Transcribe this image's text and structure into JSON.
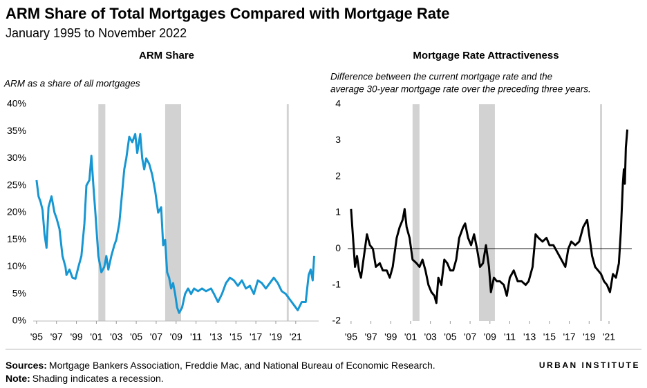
{
  "title": "ARM Share of Total Mortgages Compared with Mortgage Rate",
  "subtitle": "January 1995 to November 2022",
  "chart_data": [
    {
      "type": "line",
      "title": "ARM Share",
      "title_color": "#1696d2",
      "y_label": [
        "ARM as a share of all mortgages"
      ],
      "color": "#1696d2",
      "x": [
        1995.0,
        1995.2,
        1995.4,
        1995.6,
        1995.8,
        1996.0,
        1996.2,
        1996.5,
        1996.8,
        1997.0,
        1997.3,
        1997.6,
        1997.9,
        1998.0,
        1998.3,
        1998.6,
        1998.9,
        1999.2,
        1999.5,
        1999.8,
        2000.0,
        2000.3,
        2000.5,
        2000.7,
        2000.9,
        2001.2,
        2001.5,
        2001.8,
        2002.0,
        2002.2,
        2002.5,
        2002.8,
        2003.0,
        2003.3,
        2003.5,
        2003.8,
        2004.0,
        2004.3,
        2004.6,
        2004.9,
        2005.1,
        2005.4,
        2005.6,
        2005.8,
        2006.0,
        2006.3,
        2006.6,
        2006.9,
        2007.2,
        2007.5,
        2007.7,
        2007.9,
        2008.1,
        2008.3,
        2008.5,
        2008.7,
        2008.9,
        2009.1,
        2009.3,
        2009.6,
        2009.9,
        2010.2,
        2010.5,
        2010.8,
        2011.2,
        2011.6,
        2012.0,
        2012.5,
        2012.8,
        2013.2,
        2013.6,
        2014.0,
        2014.4,
        2014.8,
        2015.2,
        2015.6,
        2016.0,
        2016.4,
        2016.8,
        2017.2,
        2017.6,
        2018.0,
        2018.4,
        2018.8,
        2019.2,
        2019.6,
        2020.0,
        2020.4,
        2020.8,
        2021.2,
        2021.6,
        2022.0,
        2022.3,
        2022.5,
        2022.7,
        2022.85
      ],
      "values": [
        26,
        23,
        22,
        20.5,
        16,
        13.5,
        21,
        23,
        20,
        19,
        17,
        12,
        10,
        8.5,
        9.5,
        8,
        7.8,
        10,
        12,
        18,
        25,
        26,
        30.5,
        25,
        20,
        12,
        9,
        10,
        12,
        9.5,
        12,
        14,
        15,
        18,
        22,
        28,
        30,
        34,
        33,
        34.5,
        31,
        34.5,
        30,
        28,
        30,
        29,
        27,
        24,
        20,
        21,
        14,
        15,
        9,
        8,
        6,
        7,
        5,
        2.5,
        1.5,
        2.5,
        5,
        6,
        5,
        6,
        5.5,
        6,
        5.5,
        6,
        5,
        3.5,
        5,
        7,
        8,
        7.5,
        6.5,
        7.5,
        6,
        6.5,
        5,
        7.5,
        7,
        6,
        7,
        8,
        7,
        5.5,
        5,
        4,
        3,
        2,
        3.5,
        3.5,
        8.5,
        9.5,
        7.5,
        12
      ],
      "recessions": [
        [
          2001.2,
          2001.9
        ],
        [
          2007.9,
          2009.5
        ],
        [
          2020.1,
          2020.3
        ]
      ],
      "xlim": [
        1994.8,
        2023.3
      ],
      "xticks": [
        {
          "value": 1995,
          "label": "'95"
        },
        {
          "value": 1997,
          "label": "'97"
        },
        {
          "value": 1999,
          "label": "'99"
        },
        {
          "value": 2001,
          "label": "'01"
        },
        {
          "value": 2003,
          "label": "'03"
        },
        {
          "value": 2005,
          "label": "'05"
        },
        {
          "value": 2007,
          "label": "'07"
        },
        {
          "value": 2009,
          "label": "'09"
        },
        {
          "value": 2011,
          "label": "'11"
        },
        {
          "value": 2013,
          "label": "'13"
        },
        {
          "value": 2015,
          "label": "'15"
        },
        {
          "value": 2017,
          "label": "'17"
        },
        {
          "value": 2019,
          "label": "'19"
        },
        {
          "value": 2021,
          "label": "'21"
        }
      ],
      "ylim": [
        0,
        40
      ],
      "yticks": [
        {
          "value": 0,
          "label": "0%"
        },
        {
          "value": 5,
          "label": "5%"
        },
        {
          "value": 10,
          "label": "10%"
        },
        {
          "value": 15,
          "label": "15%"
        },
        {
          "value": 20,
          "label": "20%"
        },
        {
          "value": 25,
          "label": "25%"
        },
        {
          "value": 30,
          "label": "30%"
        },
        {
          "value": 35,
          "label": "35%"
        },
        {
          "value": 40,
          "label": "40%"
        }
      ]
    },
    {
      "type": "line",
      "title": "Mortgage Rate Attractiveness",
      "title_color": "#000000",
      "y_label": [
        "Difference between the current mortgage rate and the",
        "average 30-year mortgage rate over the preceding three years."
      ],
      "color": "#000000",
      "x": [
        1995.0,
        1995.2,
        1995.4,
        1995.6,
        1995.8,
        1996.0,
        1996.3,
        1996.6,
        1996.9,
        1997.2,
        1997.5,
        1997.9,
        1998.2,
        1998.6,
        1998.9,
        1999.2,
        1999.6,
        1999.9,
        2000.2,
        2000.4,
        2000.6,
        2000.9,
        2001.2,
        2001.6,
        2001.9,
        2002.2,
        2002.5,
        2002.8,
        2003.1,
        2003.4,
        2003.6,
        2003.8,
        2004.1,
        2004.4,
        2004.7,
        2005.0,
        2005.3,
        2005.6,
        2005.9,
        2006.3,
        2006.5,
        2006.8,
        2007.1,
        2007.4,
        2007.7,
        2008.0,
        2008.3,
        2008.6,
        2008.9,
        2009.1,
        2009.4,
        2009.7,
        2010.0,
        2010.4,
        2010.7,
        2011.0,
        2011.4,
        2011.8,
        2012.2,
        2012.6,
        2012.9,
        2013.3,
        2013.6,
        2013.9,
        2014.3,
        2014.7,
        2015.0,
        2015.4,
        2015.8,
        2016.2,
        2016.6,
        2016.9,
        2017.2,
        2017.6,
        2018.0,
        2018.4,
        2018.8,
        2019.0,
        2019.3,
        2019.6,
        2019.9,
        2020.2,
        2020.5,
        2020.8,
        2021.1,
        2021.4,
        2021.7,
        2022.0,
        2022.2,
        2022.4,
        2022.5,
        2022.6,
        2022.7,
        2022.85
      ],
      "values": [
        1.1,
        0.3,
        -0.5,
        -0.2,
        -0.6,
        -0.8,
        -0.2,
        0.4,
        0.1,
        0.0,
        -0.5,
        -0.4,
        -0.6,
        -0.6,
        -0.8,
        -0.5,
        0.3,
        0.6,
        0.8,
        1.1,
        0.6,
        0.3,
        -0.3,
        -0.4,
        -0.5,
        -0.3,
        -0.6,
        -1.0,
        -1.2,
        -1.3,
        -1.5,
        -0.8,
        -1.0,
        -0.3,
        -0.4,
        -0.6,
        -0.6,
        -0.3,
        0.3,
        0.6,
        0.7,
        0.3,
        0.1,
        0.4,
        0.0,
        -0.5,
        -0.4,
        0.1,
        -0.5,
        -1.2,
        -0.8,
        -0.9,
        -0.9,
        -1.0,
        -1.3,
        -0.8,
        -0.6,
        -0.9,
        -0.9,
        -1.0,
        -0.9,
        -0.5,
        0.4,
        0.3,
        0.2,
        0.3,
        0.1,
        0.1,
        -0.1,
        -0.3,
        -0.5,
        0.0,
        0.2,
        0.1,
        0.2,
        0.6,
        0.8,
        0.4,
        -0.2,
        -0.5,
        -0.6,
        -0.7,
        -0.9,
        -1.0,
        -1.2,
        -0.7,
        -0.8,
        -0.4,
        0.5,
        1.8,
        2.2,
        1.8,
        2.8,
        3.3
      ],
      "recessions": [
        [
          2001.2,
          2001.9
        ],
        [
          2007.9,
          2009.5
        ],
        [
          2020.1,
          2020.3
        ]
      ],
      "xlim": [
        1994.8,
        2023.3
      ],
      "xticks": [
        {
          "value": 1995,
          "label": "'95"
        },
        {
          "value": 1997,
          "label": "'97"
        },
        {
          "value": 1999,
          "label": "'99"
        },
        {
          "value": 2001,
          "label": "'01"
        },
        {
          "value": 2003,
          "label": "'03"
        },
        {
          "value": 2005,
          "label": "'05"
        },
        {
          "value": 2007,
          "label": "'07"
        },
        {
          "value": 2009,
          "label": "'09"
        },
        {
          "value": 2011,
          "label": "'11"
        },
        {
          "value": 2013,
          "label": "'13"
        },
        {
          "value": 2015,
          "label": "'15"
        },
        {
          "value": 2017,
          "label": "'17"
        },
        {
          "value": 2019,
          "label": "'19"
        },
        {
          "value": 2021,
          "label": "'21"
        }
      ],
      "ylim": [
        -2,
        4
      ],
      "yticks": [
        -2,
        -1,
        0,
        1,
        2,
        3,
        4
      ]
    }
  ],
  "sources": {
    "label": "Sources:",
    "text": "Mortgage Bankers Association, Freddie Mac, and National Bureau of Economic Research."
  },
  "note": {
    "label": "Note:",
    "text": "Shading indicates a recession."
  },
  "logo": "URBAN INSTITUTE"
}
